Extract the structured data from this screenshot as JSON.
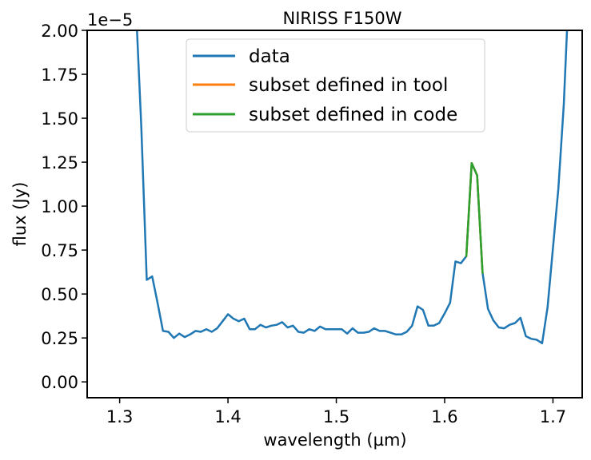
{
  "chart_data": {
    "type": "line",
    "title": "NIRISS F150W",
    "xlabel": "wavelength (µm)",
    "ylabel": "flux (Jy)",
    "y_offset_label": "1e−5",
    "xlim": [
      1.27,
      1.727
    ],
    "ylim": [
      -0.09,
      2.0
    ],
    "x_ticks": [
      1.3,
      1.4,
      1.5,
      1.6,
      1.7
    ],
    "x_tick_labels": [
      "1.3",
      "1.4",
      "1.5",
      "1.6",
      "1.7"
    ],
    "y_ticks": [
      0.0,
      0.25,
      0.5,
      0.75,
      1.0,
      1.25,
      1.5,
      1.75,
      2.0
    ],
    "y_tick_labels": [
      "0.00",
      "0.25",
      "0.50",
      "0.75",
      "1.00",
      "1.25",
      "1.50",
      "1.75",
      "2.00"
    ],
    "grid": false,
    "legend_position": "top-center",
    "series": [
      {
        "name": "data",
        "color": "#1f77b4",
        "points": [
          [
            1.31,
            3.2
          ],
          [
            1.316,
            2.0
          ],
          [
            1.32,
            1.45
          ],
          [
            1.325,
            0.58
          ],
          [
            1.33,
            0.6
          ],
          [
            1.335,
            0.45
          ],
          [
            1.34,
            0.29
          ],
          [
            1.345,
            0.285
          ],
          [
            1.35,
            0.25
          ],
          [
            1.355,
            0.275
          ],
          [
            1.36,
            0.255
          ],
          [
            1.365,
            0.27
          ],
          [
            1.37,
            0.29
          ],
          [
            1.375,
            0.285
          ],
          [
            1.38,
            0.3
          ],
          [
            1.385,
            0.285
          ],
          [
            1.39,
            0.305
          ],
          [
            1.395,
            0.345
          ],
          [
            1.4,
            0.385
          ],
          [
            1.405,
            0.36
          ],
          [
            1.41,
            0.345
          ],
          [
            1.415,
            0.36
          ],
          [
            1.42,
            0.3
          ],
          [
            1.425,
            0.3
          ],
          [
            1.43,
            0.325
          ],
          [
            1.435,
            0.31
          ],
          [
            1.44,
            0.32
          ],
          [
            1.445,
            0.325
          ],
          [
            1.45,
            0.34
          ],
          [
            1.455,
            0.31
          ],
          [
            1.46,
            0.32
          ],
          [
            1.465,
            0.285
          ],
          [
            1.47,
            0.28
          ],
          [
            1.475,
            0.3
          ],
          [
            1.48,
            0.29
          ],
          [
            1.485,
            0.315
          ],
          [
            1.49,
            0.3
          ],
          [
            1.495,
            0.3
          ],
          [
            1.5,
            0.3
          ],
          [
            1.505,
            0.3
          ],
          [
            1.51,
            0.275
          ],
          [
            1.515,
            0.305
          ],
          [
            1.52,
            0.28
          ],
          [
            1.525,
            0.28
          ],
          [
            1.53,
            0.285
          ],
          [
            1.535,
            0.305
          ],
          [
            1.54,
            0.29
          ],
          [
            1.545,
            0.29
          ],
          [
            1.55,
            0.28
          ],
          [
            1.555,
            0.27
          ],
          [
            1.56,
            0.27
          ],
          [
            1.565,
            0.285
          ],
          [
            1.57,
            0.32
          ],
          [
            1.575,
            0.43
          ],
          [
            1.58,
            0.41
          ],
          [
            1.585,
            0.32
          ],
          [
            1.59,
            0.32
          ],
          [
            1.595,
            0.335
          ],
          [
            1.6,
            0.39
          ],
          [
            1.605,
            0.45
          ],
          [
            1.61,
            0.685
          ],
          [
            1.615,
            0.675
          ],
          [
            1.62,
            0.715
          ],
          [
            1.625,
            1.245
          ],
          [
            1.63,
            1.175
          ],
          [
            1.635,
            0.62
          ],
          [
            1.64,
            0.415
          ],
          [
            1.645,
            0.35
          ],
          [
            1.65,
            0.31
          ],
          [
            1.655,
            0.305
          ],
          [
            1.66,
            0.325
          ],
          [
            1.665,
            0.335
          ],
          [
            1.67,
            0.365
          ],
          [
            1.675,
            0.26
          ],
          [
            1.68,
            0.245
          ],
          [
            1.685,
            0.24
          ],
          [
            1.69,
            0.22
          ],
          [
            1.695,
            0.425
          ],
          [
            1.7,
            0.76
          ],
          [
            1.705,
            1.1
          ],
          [
            1.71,
            1.58
          ],
          [
            1.713,
            2.0
          ],
          [
            1.718,
            3.0
          ]
        ]
      },
      {
        "name": "subset defined in tool",
        "color": "#ff7f0e",
        "points": [
          [
            1.62,
            0.715
          ],
          [
            1.625,
            1.245
          ],
          [
            1.63,
            1.175
          ],
          [
            1.635,
            0.62
          ]
        ]
      },
      {
        "name": "subset defined in code",
        "color": "#2ca02c",
        "points": [
          [
            1.62,
            0.715
          ],
          [
            1.625,
            1.245
          ],
          [
            1.63,
            1.175
          ],
          [
            1.635,
            0.62
          ]
        ]
      }
    ]
  }
}
